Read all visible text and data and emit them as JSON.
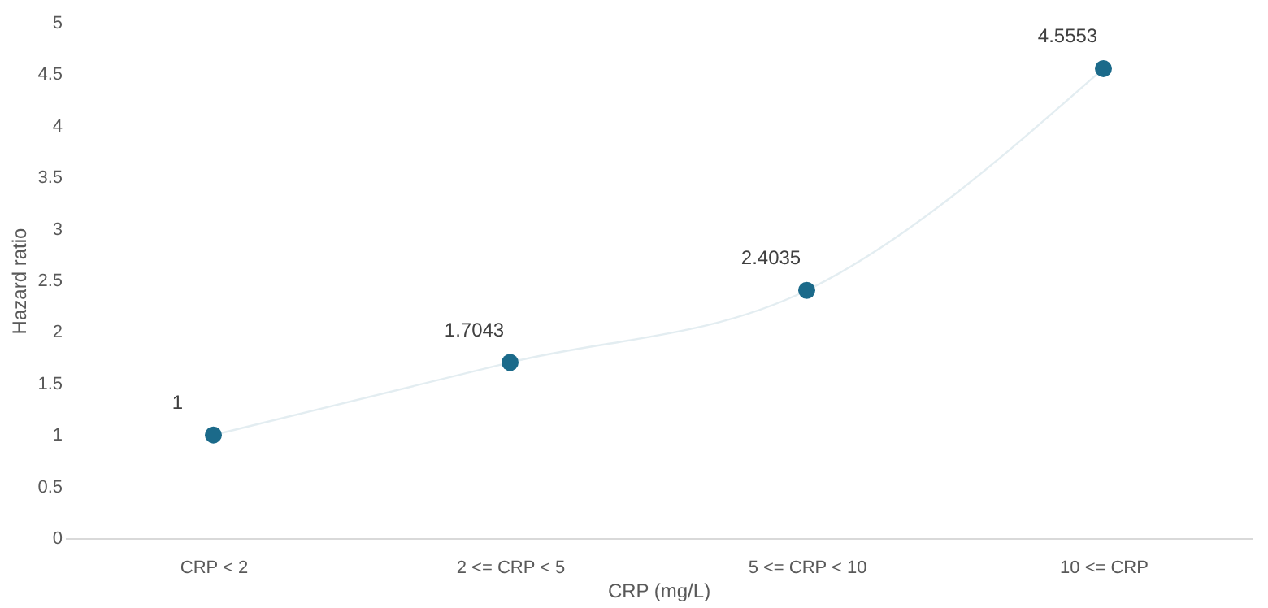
{
  "chart_data": {
    "type": "line",
    "xlabel": "CRP (mg/L)",
    "ylabel": "Hazard ratio",
    "categories": [
      "CRP < 2",
      "2 <= CRP < 5",
      "5 <= CRP < 10",
      "10 <= CRP"
    ],
    "series": [
      {
        "color": "#1b6a8a",
        "values": [
          1,
          1.7043,
          2.4035,
          4.5553
        ]
      }
    ],
    "ylim": [
      0,
      5
    ],
    "yticks": [
      0,
      0.5,
      1,
      1.5,
      2,
      2.5,
      3,
      3.5,
      4,
      4.5,
      5
    ],
    "marker": "circle",
    "data_labels": true,
    "grid": false
  }
}
